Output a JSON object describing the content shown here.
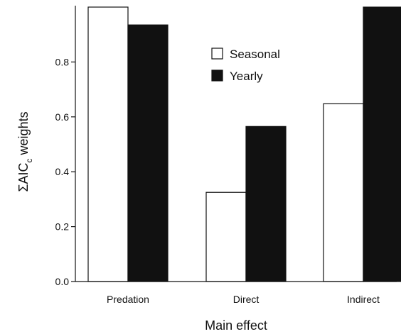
{
  "chart_data": {
    "type": "bar",
    "categories": [
      "Predation",
      "Direct",
      "Indirect"
    ],
    "series": [
      {
        "name": "Seasonal",
        "values": [
          1.0,
          0.325,
          0.648
        ],
        "color": "#ffffff"
      },
      {
        "name": "Yearly",
        "values": [
          0.935,
          0.565,
          1.0
        ],
        "color": "#111111"
      }
    ],
    "xlabel": "Main effect",
    "ylabel": {
      "prefix": "ΣAIC",
      "subscript": "c",
      "suffix": " weights"
    },
    "ylim": [
      0,
      1.0
    ],
    "yticks": [
      "0.0",
      "0.2",
      "0.4",
      "0.6",
      "0.8"
    ],
    "grid": false,
    "legend_position": "top-center"
  }
}
